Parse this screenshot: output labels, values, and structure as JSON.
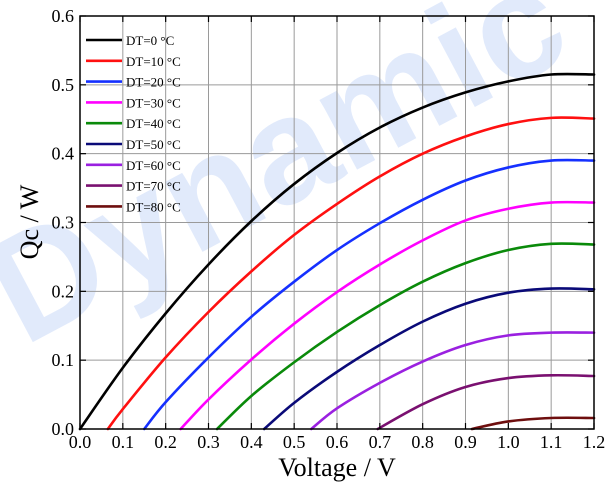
{
  "chart_data": {
    "type": "line",
    "title": "",
    "xlabel": "Voltage / V",
    "ylabel": "Qc / W",
    "xlim": [
      0.0,
      1.2
    ],
    "ylim": [
      0.0,
      0.6
    ],
    "xticks": [
      "0.0",
      "0.1",
      "0.2",
      "0.3",
      "0.4",
      "0.5",
      "0.6",
      "0.7",
      "0.8",
      "0.9",
      "1.0",
      "1.1",
      "1.2"
    ],
    "yticks": [
      "0.0",
      "0.1",
      "0.2",
      "0.3",
      "0.4",
      "0.5",
      "0.6"
    ],
    "grid": true,
    "legend_position": "top-left",
    "watermark": "Dynamic",
    "series": [
      {
        "name": "DT=0 °C",
        "color": "#000000",
        "points": [
          [
            0.0,
            0.0
          ],
          [
            0.1,
            0.089
          ],
          [
            0.2,
            0.168
          ],
          [
            0.3,
            0.239
          ],
          [
            0.4,
            0.302
          ],
          [
            0.5,
            0.356
          ],
          [
            0.6,
            0.401
          ],
          [
            0.7,
            0.438
          ],
          [
            0.8,
            0.467
          ],
          [
            0.9,
            0.489
          ],
          [
            1.0,
            0.505
          ],
          [
            1.1,
            0.515
          ],
          [
            1.2,
            0.515
          ]
        ]
      },
      {
        "name": "DT=10 °C",
        "color": "#ff1010",
        "points": [
          [
            0.065,
            0.0
          ],
          [
            0.1,
            0.029
          ],
          [
            0.2,
            0.104
          ],
          [
            0.3,
            0.17
          ],
          [
            0.4,
            0.229
          ],
          [
            0.5,
            0.282
          ],
          [
            0.6,
            0.327
          ],
          [
            0.7,
            0.367
          ],
          [
            0.8,
            0.4
          ],
          [
            0.9,
            0.425
          ],
          [
            1.0,
            0.443
          ],
          [
            1.1,
            0.452
          ],
          [
            1.2,
            0.451
          ]
        ]
      },
      {
        "name": "DT=20 °C",
        "color": "#1530ff",
        "points": [
          [
            0.15,
            0.0
          ],
          [
            0.2,
            0.039
          ],
          [
            0.3,
            0.104
          ],
          [
            0.4,
            0.163
          ],
          [
            0.5,
            0.214
          ],
          [
            0.6,
            0.26
          ],
          [
            0.7,
            0.299
          ],
          [
            0.8,
            0.333
          ],
          [
            0.9,
            0.361
          ],
          [
            1.0,
            0.38
          ],
          [
            1.1,
            0.39
          ],
          [
            1.2,
            0.39
          ]
        ]
      },
      {
        "name": "DT=30 °C",
        "color": "#ff00ff",
        "points": [
          [
            0.235,
            0.0
          ],
          [
            0.3,
            0.043
          ],
          [
            0.4,
            0.101
          ],
          [
            0.5,
            0.153
          ],
          [
            0.6,
            0.199
          ],
          [
            0.7,
            0.239
          ],
          [
            0.8,
            0.274
          ],
          [
            0.9,
            0.303
          ],
          [
            1.0,
            0.32
          ],
          [
            1.1,
            0.329
          ],
          [
            1.2,
            0.329
          ]
        ]
      },
      {
        "name": "DT=40 °C",
        "color": "#0a8a0a",
        "points": [
          [
            0.32,
            0.0
          ],
          [
            0.4,
            0.048
          ],
          [
            0.5,
            0.097
          ],
          [
            0.6,
            0.141
          ],
          [
            0.7,
            0.18
          ],
          [
            0.8,
            0.214
          ],
          [
            0.9,
            0.241
          ],
          [
            1.0,
            0.26
          ],
          [
            1.1,
            0.269
          ],
          [
            1.2,
            0.268
          ]
        ]
      },
      {
        "name": "DT=50 °C",
        "color": "#0a0a78",
        "points": [
          [
            0.43,
            0.0
          ],
          [
            0.5,
            0.038
          ],
          [
            0.6,
            0.083
          ],
          [
            0.7,
            0.122
          ],
          [
            0.8,
            0.156
          ],
          [
            0.9,
            0.182
          ],
          [
            1.0,
            0.198
          ],
          [
            1.1,
            0.204
          ],
          [
            1.2,
            0.203
          ]
        ]
      },
      {
        "name": "DT=60 °C",
        "color": "#9a20e0",
        "points": [
          [
            0.54,
            0.0
          ],
          [
            0.6,
            0.03
          ],
          [
            0.7,
            0.067
          ],
          [
            0.8,
            0.098
          ],
          [
            0.9,
            0.122
          ],
          [
            1.0,
            0.136
          ],
          [
            1.1,
            0.14
          ],
          [
            1.2,
            0.14
          ]
        ]
      },
      {
        "name": "DT=70 °C",
        "color": "#7a1070",
        "points": [
          [
            0.695,
            0.0
          ],
          [
            0.8,
            0.036
          ],
          [
            0.9,
            0.061
          ],
          [
            1.0,
            0.074
          ],
          [
            1.1,
            0.078
          ],
          [
            1.2,
            0.077
          ]
        ]
      },
      {
        "name": "DT=80 °C",
        "color": "#6e0e0e",
        "points": [
          [
            0.915,
            0.0
          ],
          [
            1.0,
            0.011
          ],
          [
            1.1,
            0.016
          ],
          [
            1.2,
            0.016
          ]
        ]
      }
    ]
  }
}
